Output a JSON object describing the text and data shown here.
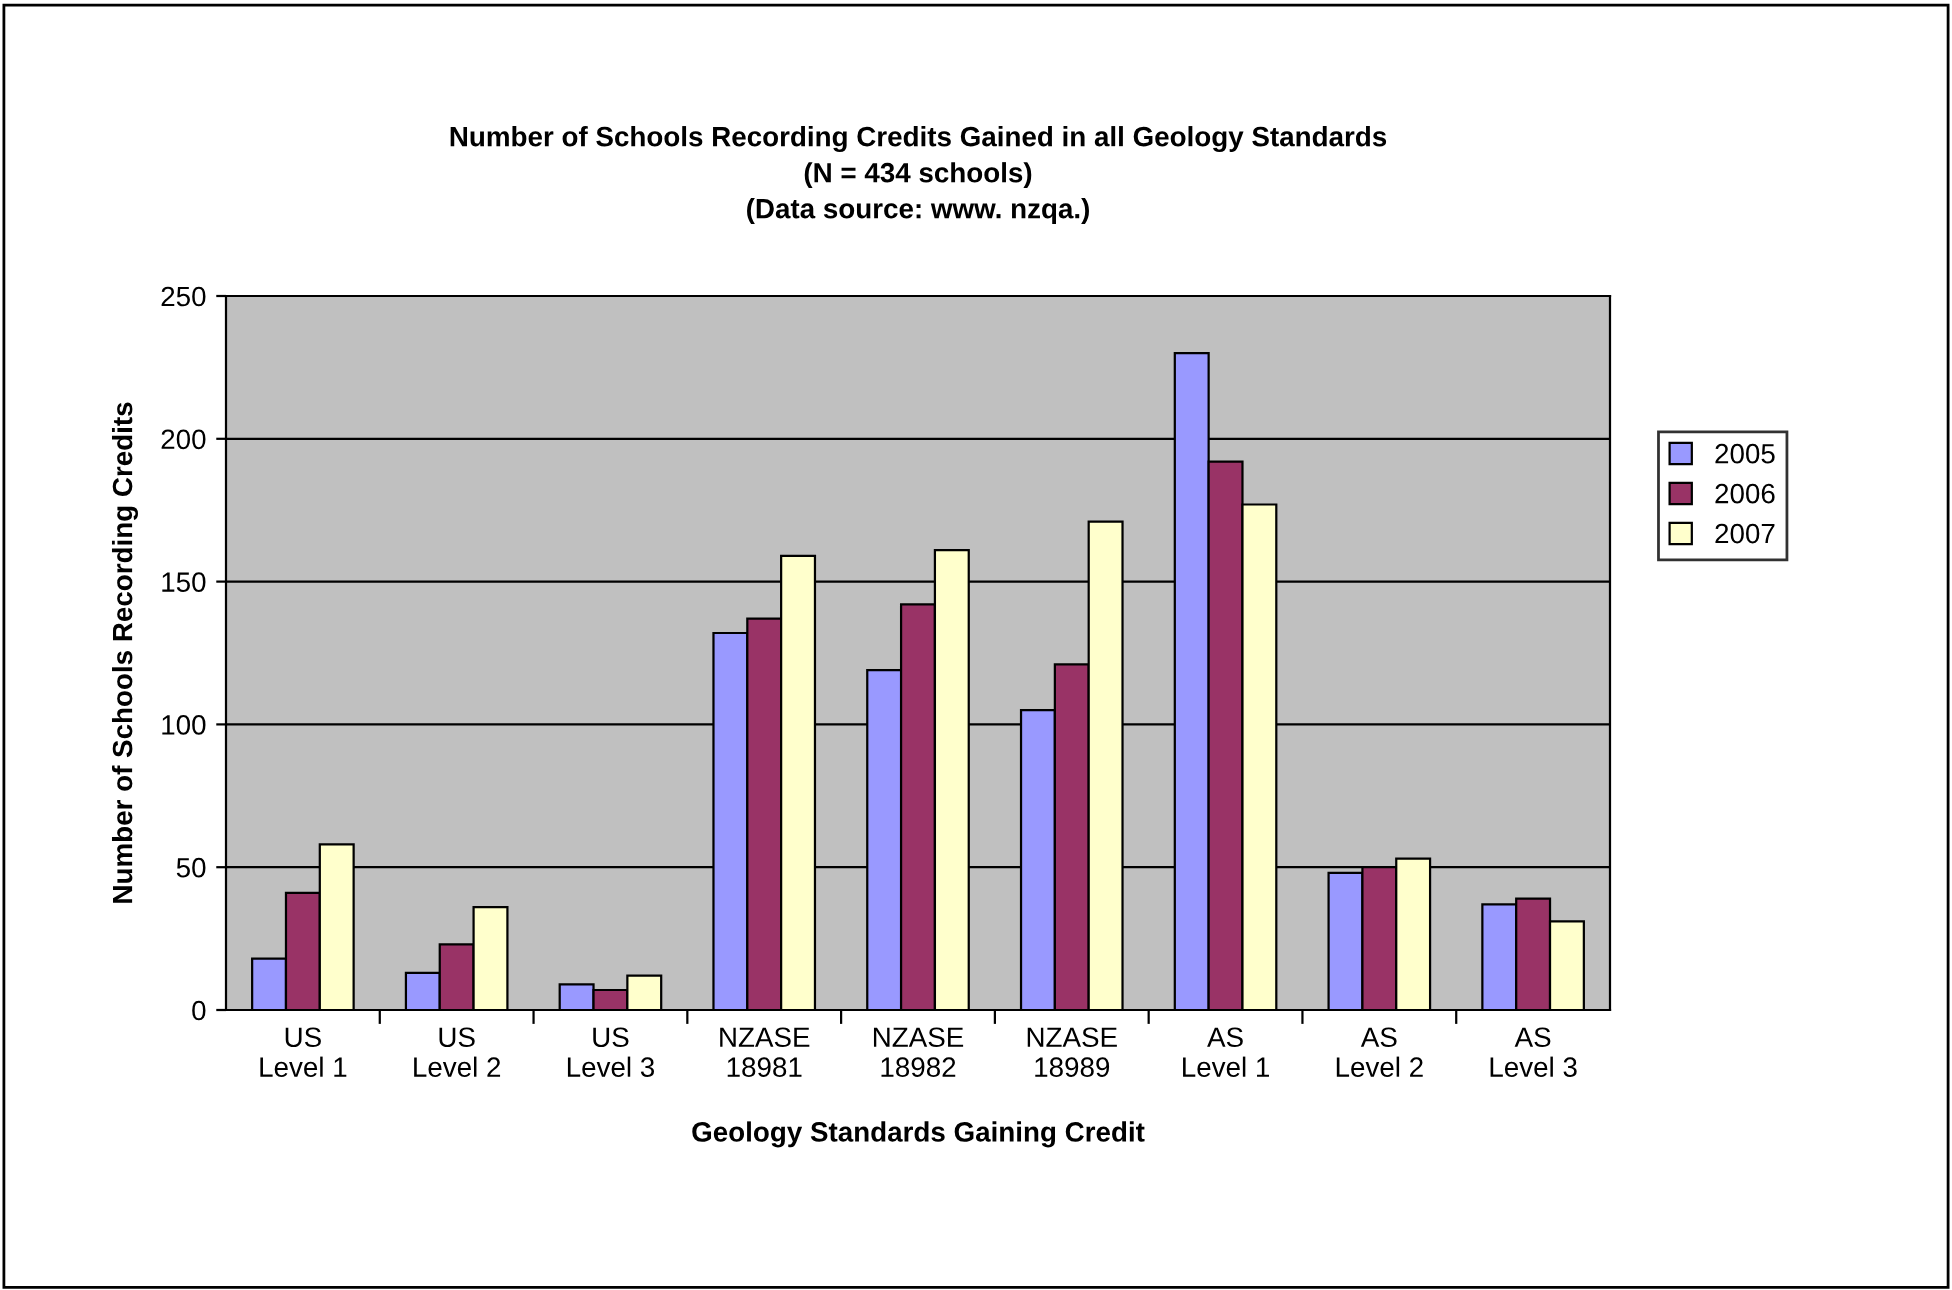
{
  "chart_data": {
    "type": "bar",
    "title": "Number of Schools Recording Credits Gained in all Geology Standards\n(N = 434 schools)\n(Data source: www. nzqa.)",
    "xlabel": "Geology Standards Gaining Credit",
    "ylabel": "Number of Schools Recording Credits",
    "categories": [
      "US\nLevel 1",
      "US\nLevel 2",
      "US\nLevel 3",
      "NZASE\n18981",
      "NZASE\n18982",
      "NZASE\n18989",
      "AS\nLevel 1",
      "AS\nLevel 2",
      "AS\nLevel 3"
    ],
    "series": [
      {
        "name": "2005",
        "color": "#9999ff",
        "values": [
          18,
          13,
          9,
          132,
          119,
          105,
          230,
          48,
          37
        ]
      },
      {
        "name": "2006",
        "color": "#993366",
        "values": [
          41,
          23,
          7,
          137,
          142,
          121,
          192,
          50,
          39
        ]
      },
      {
        "name": "2007",
        "color": "#ffffcc",
        "values": [
          58,
          36,
          12,
          159,
          161,
          171,
          177,
          53,
          31
        ]
      }
    ],
    "ylim": [
      0,
      250
    ],
    "yticks": [
      0,
      50,
      100,
      150,
      200,
      250
    ],
    "grid": "y",
    "legend": "right"
  }
}
